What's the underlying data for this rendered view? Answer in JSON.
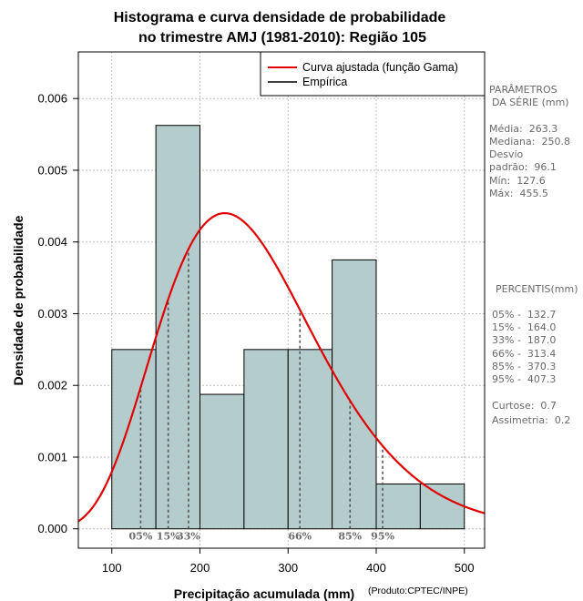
{
  "chart_data": {
    "type": "histogram",
    "title_line1": "Histograma e curva densidade de probabilidade",
    "title_line2": "no trimestre AMJ (1981-2010): Região 105",
    "xlabel": "Precipitação acumulada (mm)",
    "ylabel": "Densidade de probabilidade",
    "credit": "(Produto:CPTEC/INPE)",
    "xlim": [
      62,
      523
    ],
    "ylim": [
      -0.00027,
      0.00665
    ],
    "x_ticks": [
      100,
      200,
      300,
      400,
      500
    ],
    "y_ticks": [
      0.0,
      0.001,
      0.002,
      0.003,
      0.004,
      0.005,
      0.006
    ],
    "y_tick_labels": [
      "0.000",
      "0.001",
      "0.002",
      "0.003",
      "0.004",
      "0.005",
      "0.006"
    ],
    "bins": [
      {
        "from": 100,
        "to": 150,
        "density": 0.0025
      },
      {
        "from": 150,
        "to": 200,
        "density": 0.005625
      },
      {
        "from": 200,
        "to": 250,
        "density": 0.001875
      },
      {
        "from": 250,
        "to": 300,
        "density": 0.0025
      },
      {
        "from": 300,
        "to": 350,
        "density": 0.0025
      },
      {
        "from": 350,
        "to": 400,
        "density": 0.00375
      },
      {
        "from": 400,
        "to": 450,
        "density": 0.000625
      },
      {
        "from": 450,
        "to": 500,
        "density": 0.000625
      }
    ],
    "gamma_fit": {
      "shape": 7.5,
      "scale": 35.1,
      "mode_label": "Curva ajustada (função Gama)"
    },
    "percentile_markers": [
      {
        "label": "05%",
        "x": 132.7
      },
      {
        "label": "15%",
        "x": 164.0
      },
      {
        "label": "33%",
        "x": 187.0
      },
      {
        "label": "66%",
        "x": 313.4
      },
      {
        "label": "85%",
        "x": 370.3
      },
      {
        "label": "95%",
        "x": 407.3
      }
    ],
    "legend": [
      {
        "label": "Curva ajustada (função Gama)",
        "color": "#e00000"
      },
      {
        "label": "Empírica",
        "color": "#000000"
      }
    ],
    "grid": true,
    "legend_position": "top-right"
  },
  "colors": {
    "bar_fill": "#b4cccc",
    "curve": "#e00000",
    "grid": "#bdbdbd",
    "percentile_line": "#555555",
    "side_text": "#6a6a6a"
  },
  "side_panel": {
    "params_title_1": "PARÂMETROS",
    "params_title_2": "DA SÉRIE (mm)",
    "media": "Média:  263.3",
    "mediana": "Mediana:  250.8",
    "desvio_1": "Desvio",
    "desvio_2": "padrão:  96.1",
    "min": "Mín:  127.6",
    "max": "Máx:  455.5",
    "percentis_title": "PERCENTIS(mm)",
    "p05": "05% -  132.7",
    "p15": "15% -  164.0",
    "p33": "33% -  187.0",
    "p66": "66% -  313.4",
    "p85": "85% -  370.3",
    "p95": "95% -  407.3",
    "curtose": "Curtose:  0.7",
    "assimetria": "Assimetria:  0.2"
  }
}
